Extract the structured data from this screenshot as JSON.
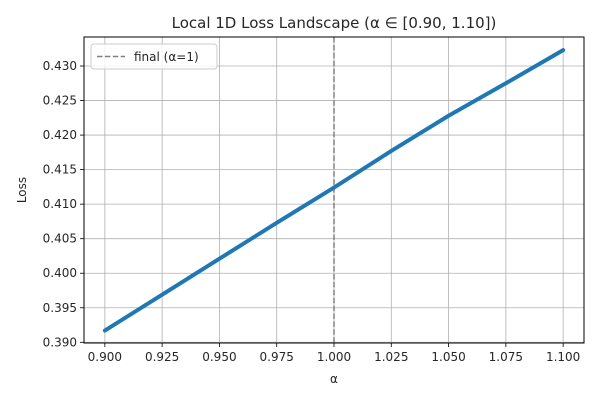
{
  "chart_data": {
    "type": "line",
    "title": "Local 1D Loss Landscape (α ∈ [0.90, 1.10])",
    "xlabel": "α",
    "ylabel": "Loss",
    "xlim": [
      0.8909,
      1.1091
    ],
    "ylim": [
      0.3899,
      0.4342
    ],
    "xticks": [
      0.9,
      0.925,
      0.95,
      0.975,
      1.0,
      1.025,
      1.05,
      1.075,
      1.1
    ],
    "xtick_labels": [
      "0.900",
      "0.925",
      "0.950",
      "0.975",
      "1.000",
      "1.025",
      "1.050",
      "1.075",
      "1.100"
    ],
    "yticks": [
      0.39,
      0.395,
      0.4,
      0.405,
      0.41,
      0.415,
      0.42,
      0.425,
      0.43
    ],
    "ytick_labels": [
      "0.390",
      "0.395",
      "0.400",
      "0.405",
      "0.410",
      "0.415",
      "0.420",
      "0.425",
      "0.430"
    ],
    "grid": true,
    "legend_position": "top-left",
    "series": [
      {
        "color": "#1f77b4",
        "x": [
          0.9,
          0.925,
          0.95,
          0.975,
          1.0,
          1.025,
          1.05,
          1.075,
          1.1
        ],
        "y": [
          0.3917,
          0.3969,
          0.4021,
          0.4073,
          0.4124,
          0.4177,
          0.4228,
          0.4275,
          0.4323
        ]
      }
    ],
    "reference_lines": [
      {
        "name": "final (α=1)",
        "axis": "x",
        "value": 1.0,
        "color": "#808080",
        "style": "dashed"
      }
    ]
  }
}
